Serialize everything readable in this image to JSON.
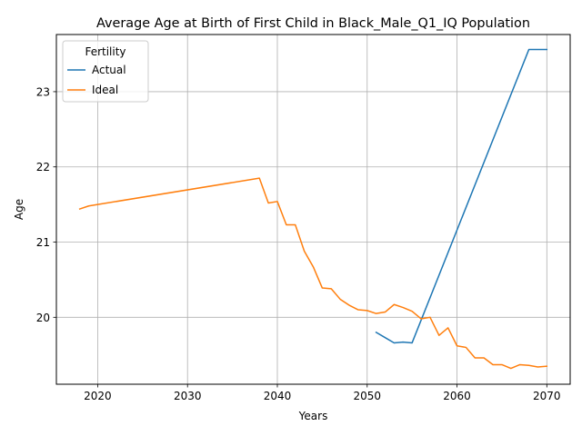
{
  "chart_data": {
    "type": "line",
    "title": "Average Age at Birth of First Child in Black_Male_Q1_IQ Population",
    "xlabel": "Years",
    "ylabel": "Age",
    "xlim": [
      2015.4,
      2072.6
    ],
    "ylim": [
      19.11,
      23.76
    ],
    "xticks": [
      2020,
      2030,
      2040,
      2050,
      2060,
      2070
    ],
    "yticks": [
      20,
      21,
      22,
      23
    ],
    "grid": true,
    "legend": {
      "title": "Fertility",
      "position": "top-left"
    },
    "series": [
      {
        "name": "Actual",
        "color": "#1f77b4",
        "points": [
          [
            2051,
            19.8
          ],
          [
            2052,
            19.73
          ],
          [
            2053,
            19.66
          ],
          [
            2054,
            19.67
          ],
          [
            2055,
            19.66
          ],
          [
            2068,
            23.56
          ],
          [
            2069,
            23.56
          ],
          [
            2070,
            23.56
          ]
        ]
      },
      {
        "name": "Ideal",
        "color": "#ff7f0e",
        "points": [
          [
            2018,
            21.44
          ],
          [
            2019,
            21.48
          ],
          [
            2020,
            21.5
          ],
          [
            2038,
            21.85
          ],
          [
            2039,
            21.52
          ],
          [
            2040,
            21.54
          ],
          [
            2041,
            21.23
          ],
          [
            2042,
            21.23
          ],
          [
            2043,
            20.88
          ],
          [
            2044,
            20.67
          ],
          [
            2045,
            20.39
          ],
          [
            2046,
            20.38
          ],
          [
            2047,
            20.24
          ],
          [
            2048,
            20.16
          ],
          [
            2049,
            20.1
          ],
          [
            2050,
            20.09
          ],
          [
            2051,
            20.05
          ],
          [
            2052,
            20.07
          ],
          [
            2053,
            20.17
          ],
          [
            2054,
            20.13
          ],
          [
            2055,
            20.08
          ],
          [
            2056,
            19.98
          ],
          [
            2057,
            20.0
          ],
          [
            2058,
            19.76
          ],
          [
            2059,
            19.86
          ],
          [
            2060,
            19.62
          ],
          [
            2061,
            19.6
          ],
          [
            2062,
            19.46
          ],
          [
            2063,
            19.46
          ],
          [
            2064,
            19.37
          ],
          [
            2065,
            19.37
          ],
          [
            2066,
            19.32
          ],
          [
            2067,
            19.37
          ],
          [
            2068,
            19.36
          ],
          [
            2069,
            19.34
          ],
          [
            2070,
            19.35
          ]
        ]
      }
    ]
  }
}
